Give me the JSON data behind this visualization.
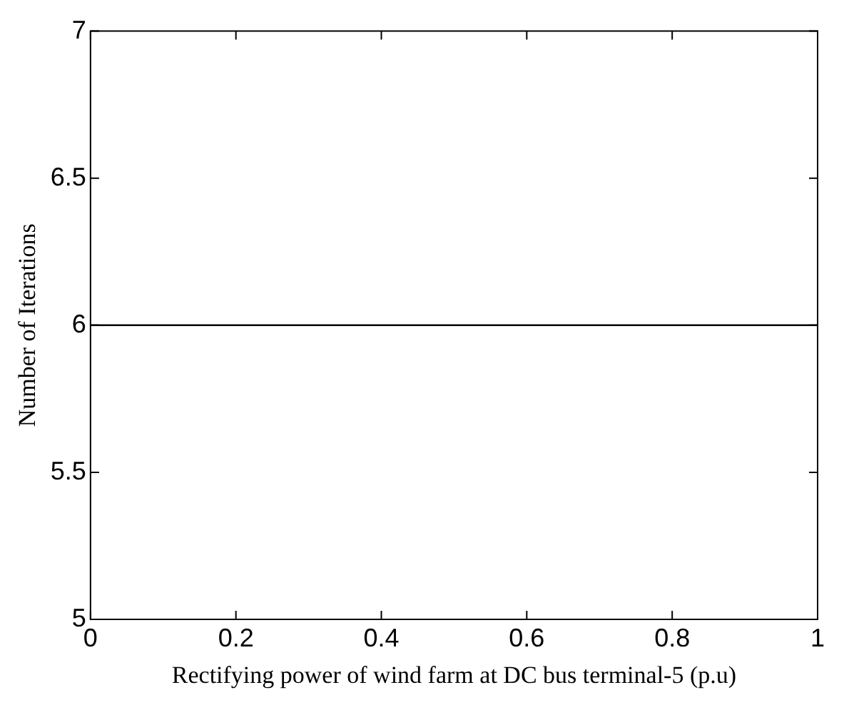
{
  "chart_data": {
    "type": "line",
    "xlabel": "Rectifying power of wind farm at DC bus terminal-5 (p.u)",
    "ylabel": "Number of Iterations",
    "x": [
      0,
      1
    ],
    "series": [
      {
        "color": "#000000",
        "values": [
          6,
          6
        ]
      }
    ],
    "xlim": [
      0,
      1
    ],
    "xticks": [
      0,
      0.2,
      0.4,
      0.6,
      0.8,
      1
    ],
    "ylim": [
      5,
      7
    ],
    "yticks": [
      5,
      5.5,
      6,
      6.5,
      7
    ],
    "marker": "none",
    "line_style": "solid",
    "legend": false
  }
}
